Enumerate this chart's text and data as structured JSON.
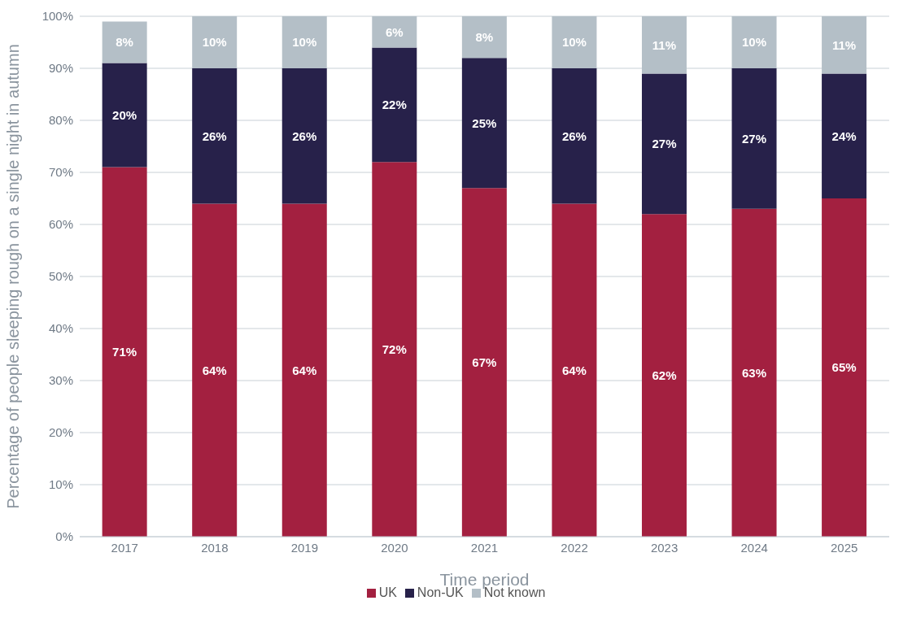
{
  "chart_data": {
    "type": "bar",
    "stacked": true,
    "xlabel": "Time period",
    "ylabel": "Percentage of people sleeping rough on a single night in autumn",
    "categories": [
      "2017",
      "2018",
      "2019",
      "2020",
      "2021",
      "2022",
      "2023",
      "2024",
      "2025"
    ],
    "series": [
      {
        "name": "UK",
        "color": "#a32040",
        "values": [
          71,
          64,
          64,
          72,
          67,
          64,
          62,
          63,
          65
        ],
        "value_labels": [
          "71%",
          "64%",
          "64%",
          "72%",
          "67%",
          "64%",
          "62%",
          "63%",
          "65%"
        ]
      },
      {
        "name": "Non-UK",
        "color": "#27214a",
        "values": [
          20,
          26,
          26,
          22,
          25,
          26,
          27,
          27,
          24
        ],
        "value_labels": [
          "20%",
          "26%",
          "26%",
          "22%",
          "25%",
          "26%",
          "27%",
          "27%",
          "24%"
        ]
      },
      {
        "name": "Not known",
        "color": "#b4bfc7",
        "values": [
          8,
          10,
          10,
          6,
          8,
          10,
          11,
          10,
          11
        ],
        "value_labels": [
          "8%",
          "10%",
          "10%",
          "6%",
          "8%",
          "10%",
          "11%",
          "10%",
          "11%"
        ]
      }
    ],
    "ylim": [
      0,
      100
    ],
    "yticks": [
      {
        "value": 0,
        "label": "0%"
      },
      {
        "value": 10,
        "label": "10%"
      },
      {
        "value": 20,
        "label": "20%"
      },
      {
        "value": 30,
        "label": "30%"
      },
      {
        "value": 40,
        "label": "40%"
      },
      {
        "value": 50,
        "label": "50%"
      },
      {
        "value": 60,
        "label": "60%"
      },
      {
        "value": 70,
        "label": "70%"
      },
      {
        "value": 80,
        "label": "80%"
      },
      {
        "value": 90,
        "label": "90%"
      },
      {
        "value": 100,
        "label": "100%"
      }
    ],
    "grid": "y",
    "legend": "bottom"
  }
}
